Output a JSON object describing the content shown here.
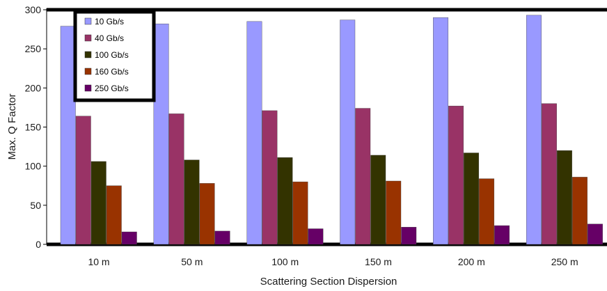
{
  "chart_data": {
    "type": "bar",
    "title": "",
    "xlabel": "Scattering Section Dispersion",
    "ylabel": "Max. Q Factor",
    "ylim": [
      0,
      300
    ],
    "yticks": [
      "0",
      "50",
      "100",
      "150",
      "200",
      "250",
      "300"
    ],
    "categories": [
      "10 m",
      "50 m",
      "100 m",
      "150 m",
      "200 m",
      "250 m"
    ],
    "series": [
      {
        "name": "10 Gb/s",
        "color": "#9999ff",
        "values": [
          279,
          282,
          285,
          287,
          290,
          293
        ]
      },
      {
        "name": "40 Gb/s",
        "color": "#993366",
        "values": [
          164,
          167,
          171,
          174,
          177,
          180
        ]
      },
      {
        "name": "100 Gb/s",
        "color": "#333300",
        "values": [
          106,
          108,
          111,
          114,
          117,
          120
        ]
      },
      {
        "name": "160 Gb/s",
        "color": "#993300",
        "values": [
          75,
          78,
          80,
          81,
          84,
          86
        ]
      },
      {
        "name": "250 Gb/s",
        "color": "#660066",
        "values": [
          16,
          17,
          20,
          22,
          24,
          26
        ]
      }
    ],
    "grid": false,
    "legend_position": "top-left"
  }
}
